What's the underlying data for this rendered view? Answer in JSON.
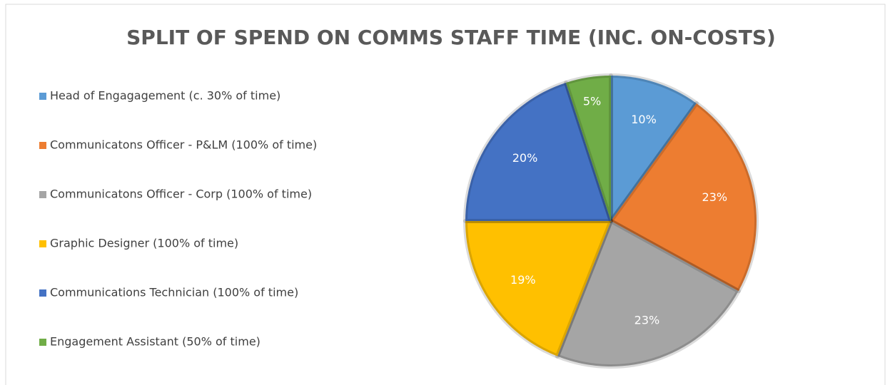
{
  "chart_data": {
    "type": "pie",
    "title": "SPLIT OF SPEND ON COMMS STAFF TIME (INC. ON-COSTS)",
    "categories": [
      "Head of Engagagement (c. 30% of time)",
      "Communicatons Officer - P&LM (100% of time)",
      "Communicatons Officer - Corp (100% of time)",
      "Graphic Designer (100% of time)",
      "Communications Technician (100% of time)",
      "Engagement Assistant (50% of time)"
    ],
    "values": [
      10,
      23,
      23,
      19,
      20,
      5
    ],
    "value_labels": [
      "10%",
      "23%",
      "23%",
      "19%",
      "20%",
      "5%"
    ],
    "colors": [
      "#5b9bd5",
      "#ed7d31",
      "#a5a5a5",
      "#ffc000",
      "#4472c4",
      "#70ad47"
    ],
    "legend": "left"
  }
}
